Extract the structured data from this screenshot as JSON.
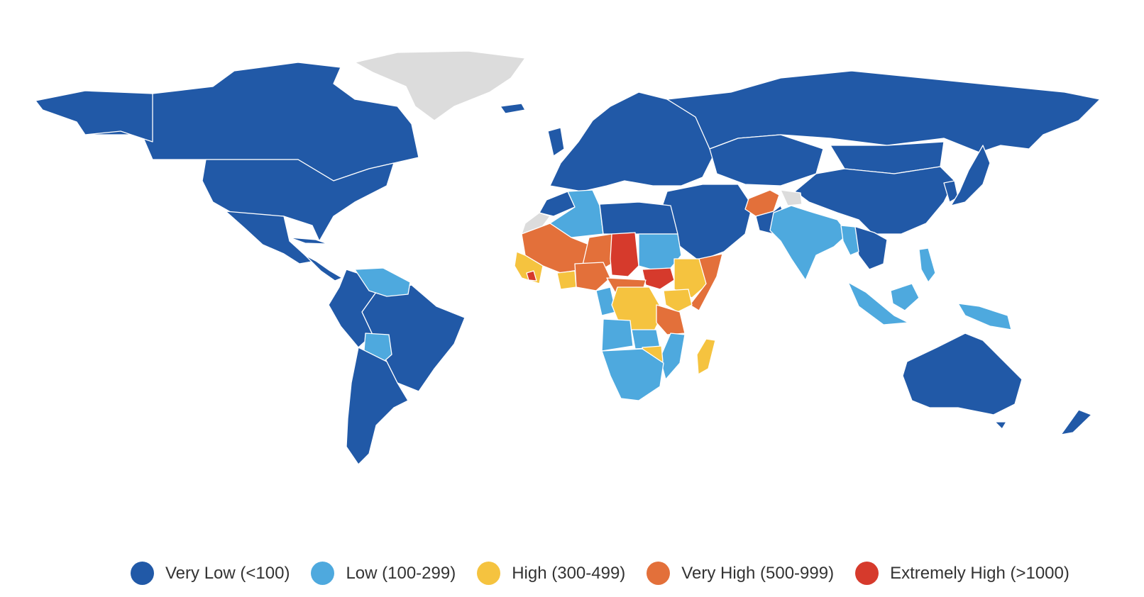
{
  "colors": {
    "very_low": "#2159a7",
    "low": "#4ea9de",
    "high": "#f5c33f",
    "very_high": "#e3703a",
    "extremely_high": "#d63a2c",
    "no_data": "#dcdcdc"
  },
  "legend": [
    {
      "label": "Very Low (<100)",
      "color": "#2159a7"
    },
    {
      "label": "Low (100-299)",
      "color": "#4ea9de"
    },
    {
      "label": "High (300-499)",
      "color": "#f5c33f"
    },
    {
      "label": "Very High (500-999)",
      "color": "#e3703a"
    },
    {
      "label": "Extremely High (>1000)",
      "color": "#d63a2c"
    }
  ]
}
